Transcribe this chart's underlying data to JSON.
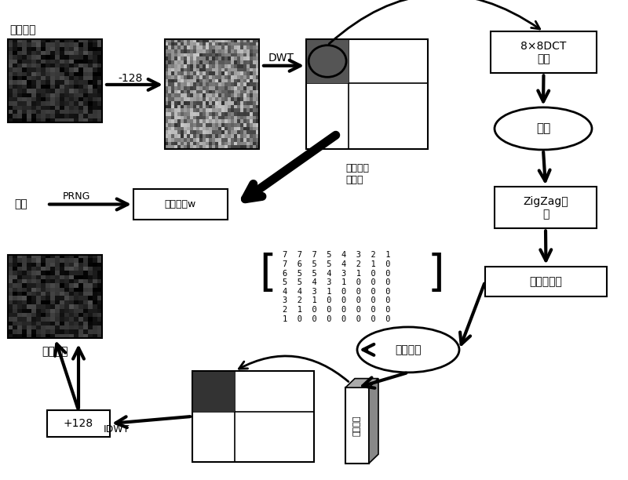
{
  "title": "",
  "bg_color": "#ffffff",
  "top_label": "原始图像",
  "seed_label": "种子",
  "watermark_label": "水印图像",
  "prng_label": "PRNG",
  "minus128_label": "-128",
  "plus128_label": "+128",
  "dwt_label": "DWT",
  "idwt_label": "IDWT",
  "quantize_mean_label": "均值四等\n分量化",
  "locate_watermark_label": "定位水印w",
  "dct_label": "8×8DCT\n变换",
  "quantize_label": "量化",
  "zigzag_label": "ZigZag扫\n描",
  "lowfreq_label": "取低频系数",
  "binary_code_label": "二值编码",
  "recover_watermark_label": "恢复水印",
  "matrix_text": "7  7  7  5  4  3  2  1\n7  6  5  5  4  2  1  0\n6  5  5  4  3  1  0  0\n5  5  4  3  1  0  0  0\n4  4  3  1  0  0  0  0\n3  2  1  0  0  0  0  0\n2  1  0  0  0  0  0  0\n1  0  0  0  0  0  0  0"
}
